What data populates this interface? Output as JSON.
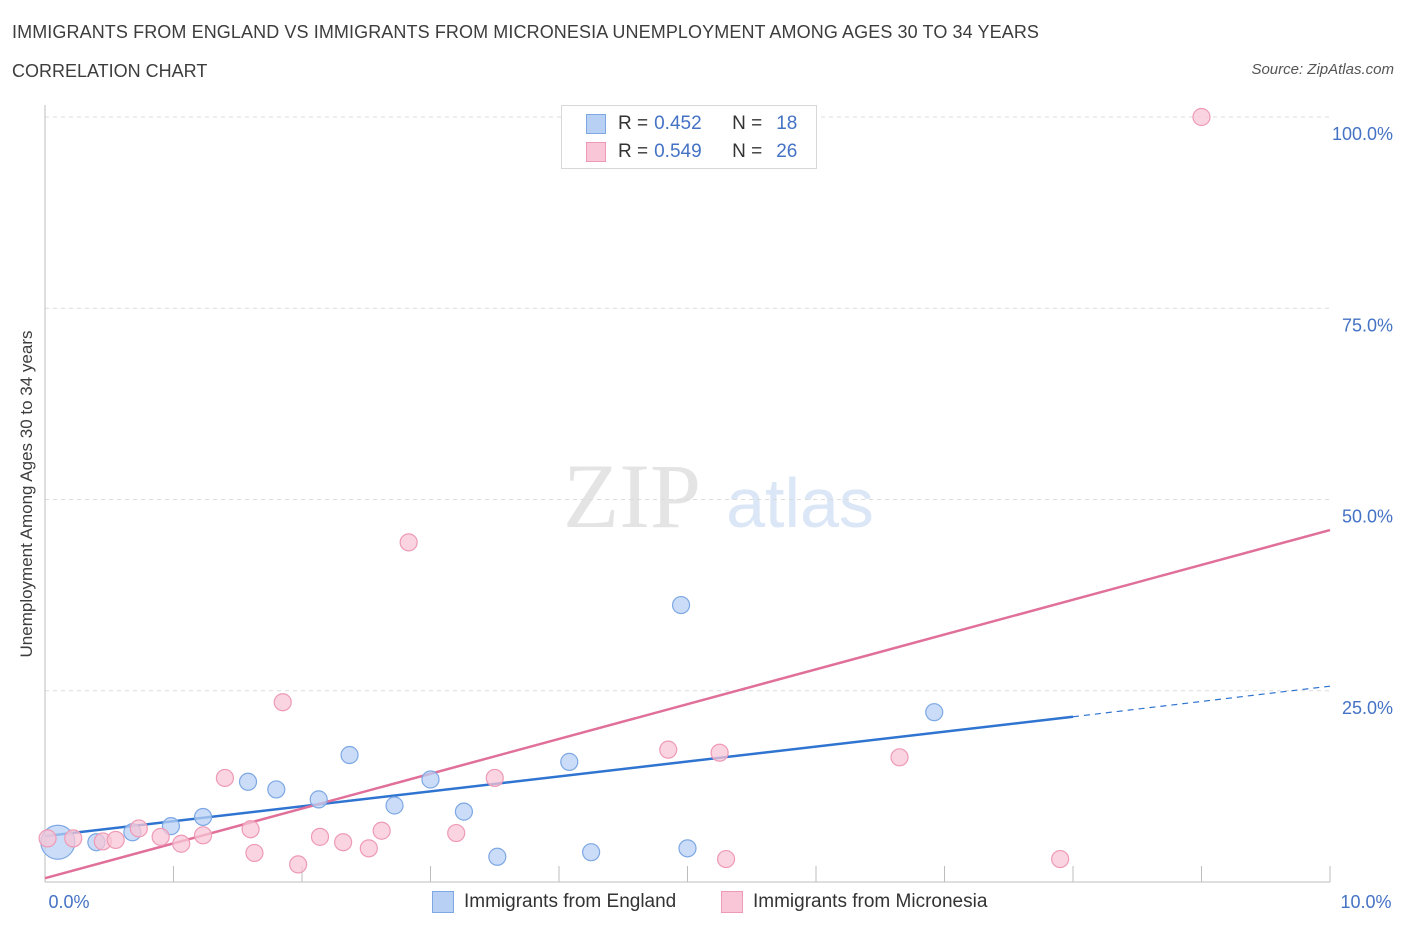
{
  "title": "IMMIGRANTS FROM ENGLAND VS IMMIGRANTS FROM MICRONESIA UNEMPLOYMENT AMONG AGES 30 TO 34 YEARS",
  "subtitle": "CORRELATION CHART",
  "source": "Source: ZipAtlas.com",
  "watermark": {
    "zip": "ZIP",
    "atlas": "atlas"
  },
  "legend": {
    "rows": [
      {
        "r_label": "R = ",
        "r_value": "0.452",
        "n_label": "N = ",
        "n_value": "18"
      },
      {
        "r_label": "R = ",
        "r_value": "0.549",
        "n_label": "N = ",
        "n_value": "26"
      }
    ]
  },
  "colors": {
    "england_fill": "#b8d0f4",
    "england_stroke": "#7da8e4",
    "england_line": "#2f74d0",
    "micronesia_fill": "#f8c6d6",
    "micronesia_stroke": "#ee9ab6",
    "micronesia_line": "#e0709a",
    "axis_text": "#4472c4",
    "grid": "#dcdcdc"
  },
  "chart_data": {
    "type": "scatter",
    "ylabel": "Unemployment Among Ages 30 to 34 years",
    "xlim": [
      0,
      10
    ],
    "ylim": [
      0,
      100
    ],
    "x_tick_labels": [
      "0.0%",
      "10.0%"
    ],
    "y_tick_labels": [
      "25.0%",
      "50.0%",
      "75.0%",
      "100.0%"
    ],
    "y_ticks": [
      25,
      50,
      75,
      100
    ],
    "grid": "horizontal dashed",
    "legend_position": "top-center",
    "series": [
      {
        "name": "Immigrants from England",
        "color": "#b8d0f4",
        "r": 0.452,
        "n": 18,
        "points": [
          [
            0.1,
            5.2,
            "large"
          ],
          [
            0.4,
            5.2
          ],
          [
            0.68,
            6.5
          ],
          [
            0.98,
            7.3
          ],
          [
            1.23,
            8.5
          ],
          [
            1.58,
            13.1
          ],
          [
            1.8,
            12.1
          ],
          [
            2.13,
            10.8
          ],
          [
            2.37,
            16.6
          ],
          [
            2.72,
            10.0
          ],
          [
            3.0,
            13.4
          ],
          [
            3.26,
            9.2
          ],
          [
            3.52,
            3.3
          ],
          [
            4.08,
            15.7
          ],
          [
            4.25,
            3.9
          ],
          [
            4.95,
            36.2
          ],
          [
            5.0,
            4.4
          ],
          [
            6.92,
            22.2
          ]
        ],
        "trend": {
          "x0": 0.0,
          "y0": 6.0,
          "x1": 8.0,
          "y1": 21.6,
          "dashed_to_x": 10.0,
          "dashed_to_y": 25.6
        }
      },
      {
        "name": "Immigrants from Micronesia",
        "color": "#f8c6d6",
        "r": 0.549,
        "n": 26,
        "points": [
          [
            0.02,
            5.7
          ],
          [
            0.22,
            5.7
          ],
          [
            0.45,
            5.3
          ],
          [
            0.55,
            5.5
          ],
          [
            0.73,
            7.0
          ],
          [
            0.9,
            5.9
          ],
          [
            1.06,
            5.0
          ],
          [
            1.23,
            6.1
          ],
          [
            1.4,
            13.6
          ],
          [
            1.6,
            6.9
          ],
          [
            1.63,
            3.8
          ],
          [
            1.85,
            23.5
          ],
          [
            1.97,
            2.3
          ],
          [
            2.14,
            5.9
          ],
          [
            2.32,
            5.2
          ],
          [
            2.52,
            4.4
          ],
          [
            2.62,
            6.7
          ],
          [
            2.83,
            44.4
          ],
          [
            3.2,
            6.4
          ],
          [
            3.5,
            13.6
          ],
          [
            4.85,
            17.3
          ],
          [
            5.25,
            16.9
          ],
          [
            5.3,
            3.0
          ],
          [
            6.65,
            16.3
          ],
          [
            7.9,
            3.0
          ],
          [
            9.0,
            100.0
          ]
        ],
        "trend": {
          "x0": 0.0,
          "y0": 0.5,
          "x1": 10.0,
          "y1": 46.0
        }
      }
    ]
  }
}
